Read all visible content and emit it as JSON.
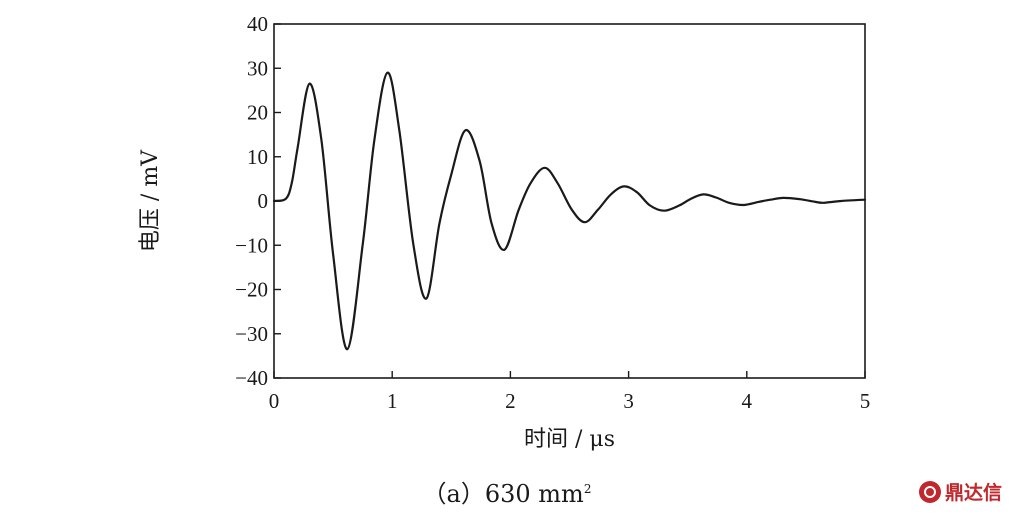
{
  "chart_data": {
    "type": "line",
    "xlabel": "时间 / μs",
    "ylabel": "电压 / mV",
    "xlim": [
      0,
      5
    ],
    "ylim": [
      -40,
      40
    ],
    "xticks": [
      0,
      1,
      2,
      3,
      4,
      5
    ],
    "yticks": [
      40,
      30,
      20,
      10,
      0,
      -10,
      -20,
      -30,
      -40
    ],
    "grid": false,
    "series": [
      {
        "color": "#1a1a1a",
        "x": [
          0,
          0.1,
          0.15,
          0.2,
          0.3,
          0.4,
          0.5,
          0.62,
          0.75,
          0.85,
          0.96,
          1.06,
          1.18,
          1.29,
          1.4,
          1.5,
          1.62,
          1.74,
          1.84,
          1.95,
          2.07,
          2.17,
          2.29,
          2.4,
          2.52,
          2.63,
          2.74,
          2.85,
          2.96,
          3.07,
          3.18,
          3.3,
          3.43,
          3.52,
          3.63,
          3.74,
          3.85,
          3.97,
          4.1,
          4.2,
          4.31,
          4.45,
          4.58,
          4.65,
          4.8,
          5.0
        ],
        "y": [
          0,
          0.5,
          4,
          12,
          26.5,
          14,
          -12,
          -33.5,
          -10,
          14,
          29,
          16,
          -10,
          -22,
          -5,
          6,
          16,
          9,
          -5,
          -11,
          -2,
          4,
          7.5,
          4,
          -2,
          -4.8,
          -2,
          1.5,
          3.3,
          2,
          -1,
          -2.2,
          -1,
          0.4,
          1.5,
          0.8,
          -0.4,
          -0.9,
          -0.2,
          0.3,
          0.7,
          0.4,
          -0.2,
          -0.4,
          0,
          0.3
        ]
      }
    ]
  },
  "caption": {
    "prefix": "（a）630 mm",
    "superscript": "2"
  },
  "watermark": {
    "text": "鼎达信",
    "icon": "brand-logo-icon",
    "color": "#c0282d"
  }
}
